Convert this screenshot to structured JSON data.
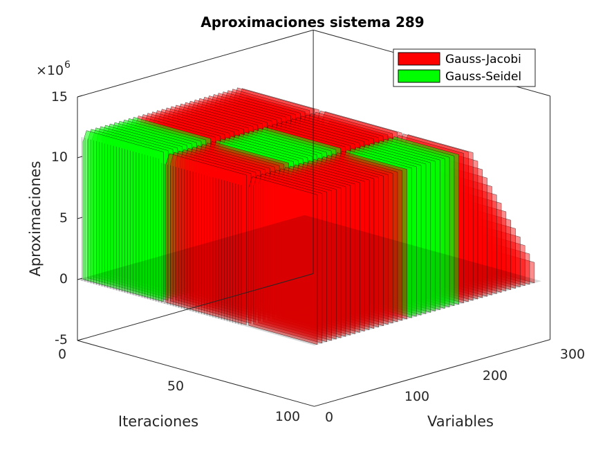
{
  "chart_data": {
    "type": "bar3",
    "title": "Aproximaciones sistema 289",
    "xlabel": "Variables",
    "ylabel": "Iteraciones",
    "zlabel": "Aproximaciones",
    "z_exponent_base": "×10",
    "z_exponent_power": "6",
    "xlim": [
      0,
      300
    ],
    "ylim": [
      0,
      100
    ],
    "zlim": [
      -5,
      15
    ],
    "x_ticks": [
      "0",
      "100",
      "200",
      "300"
    ],
    "y_ticks": [
      "0",
      "50",
      "100"
    ],
    "z_ticks": [
      "-5",
      "0",
      "5",
      "10",
      "15"
    ],
    "grid": false,
    "legend_location": "top-right",
    "series": [
      {
        "name": "Gauss-Jacobi",
        "color": "#ff0000"
      },
      {
        "name": "Gauss-Seidel",
        "color": "#00ff00"
      }
    ],
    "peak_profile": [
      {
        "x": 0,
        "z": 12.4
      },
      {
        "x": 100,
        "z": 12.4
      },
      {
        "x": 200,
        "z": 12.4
      },
      {
        "x": 289,
        "z": 0.5
      }
    ]
  }
}
